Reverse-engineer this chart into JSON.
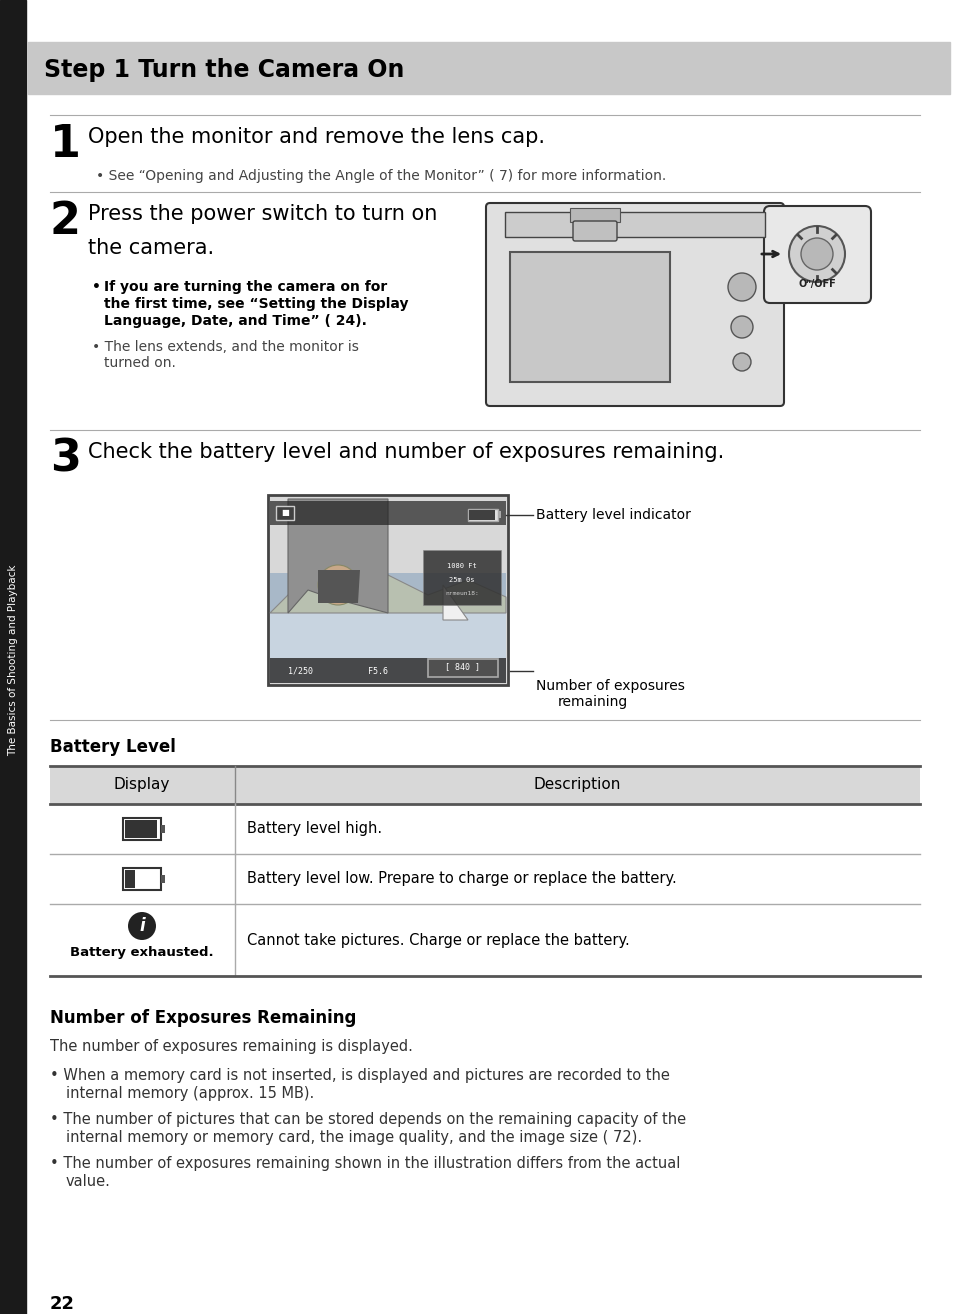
{
  "title": "Step 1 Turn the Camera On",
  "title_bg": "#c8c8c8",
  "title_color": "#000000",
  "page_bg": "#ffffff",
  "page_number": "22",
  "sidebar_text": "The Basics of Shooting and Playback",
  "sidebar_bg": "#1a1a1a",
  "step1_number": "1",
  "step1_heading": "Open the monitor and remove the lens cap.",
  "step1_bullet": "See “Opening and Adjusting the Angle of the Monitor” ( 7) for more information.",
  "step2_number": "2",
  "step2_heading_line1": "Press the power switch to turn on",
  "step2_heading_line2": "the camera.",
  "step2_bullet1_line1": "If you are turning the camera on for",
  "step2_bullet1_line2": "the first time, see “Setting the Display",
  "step2_bullet1_line3": "Language, Date, and Time” ( 24).",
  "step2_bullet2_line1": "The lens extends, and the monitor is",
  "step2_bullet2_line2": "turned on.",
  "step3_number": "3",
  "step3_heading": "Check the battery level and number of exposures remaining.",
  "battery_indicator_label": "Battery level indicator",
  "exposures_label_line1": "Number of exposures",
  "exposures_label_line2": "remaining",
  "battery_level_title": "Battery Level",
  "table_header_display": "Display",
  "table_header_description": "Description",
  "table_row1_desc": "Battery level high.",
  "table_row2_desc": "Battery level low. Prepare to charge or replace the battery.",
  "table_row3_icon_text": "Battery exhausted.",
  "table_row3_desc": "Cannot take pictures. Charge or replace the battery.",
  "exposures_title": "Number of Exposures Remaining",
  "exposures_intro": "The number of exposures remaining is displayed.",
  "bullet1_line1": "When a memory card is not inserted,",
  "bullet1_inline": " is displayed and pictures are recorded to the",
  "bullet1_line2": "internal memory (approx. 15 MB).",
  "bullet2_line1": "The number of pictures that can be stored depends on the remaining capacity of the",
  "bullet2_line2": "internal memory or memory card, the image quality, and the image size ( 72).",
  "bullet3_line1": "The number of exposures remaining shown in the illustration differs from the actual",
  "bullet3_line2": "value."
}
